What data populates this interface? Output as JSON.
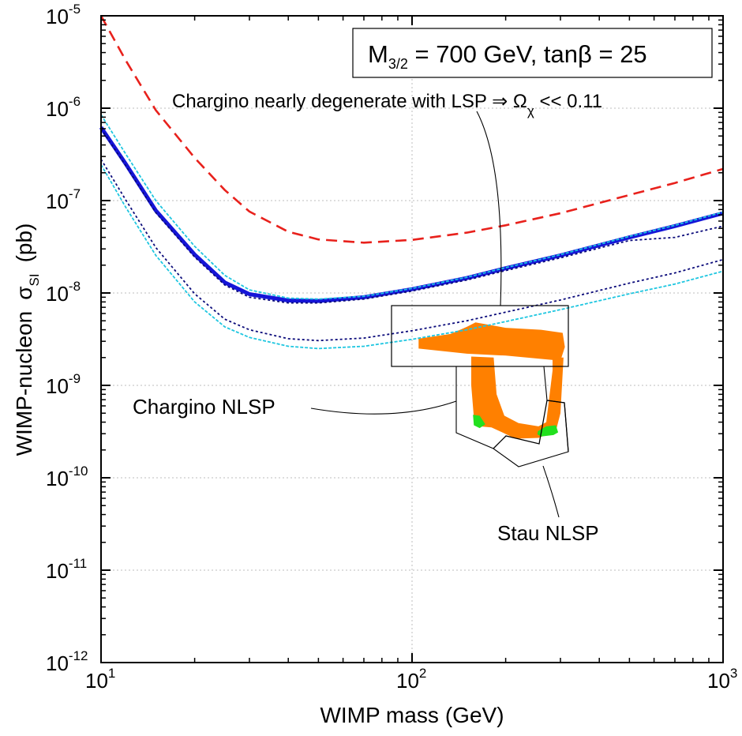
{
  "chart_data": {
    "type": "line",
    "x_scale": "log",
    "y_scale": "log",
    "xlim": [
      10,
      1000
    ],
    "ylim": [
      1e-12,
      1e-05
    ],
    "grid": true,
    "xlabel": "WIMP mass",
    "xlabel_unit": "(GeV)",
    "ylabel": "WIMP-nucleon",
    "ylabel_symbol": "σ",
    "ylabel_symbol_sub": "SI",
    "ylabel_unit": "(pb)",
    "x_ticks": [
      {
        "value": 10,
        "base": "10",
        "exp": "1"
      },
      {
        "value": 100,
        "base": "10",
        "exp": "2"
      },
      {
        "value": 1000,
        "base": "10",
        "exp": "3"
      }
    ],
    "y_ticks": [
      {
        "value": 1e-12,
        "base": "10",
        "exp": "-12"
      },
      {
        "value": 1e-11,
        "base": "10",
        "exp": "-11"
      },
      {
        "value": 1e-10,
        "base": "10",
        "exp": "-10"
      },
      {
        "value": 1e-09,
        "base": "10",
        "exp": "-9"
      },
      {
        "value": 1e-08,
        "base": "10",
        "exp": "-8"
      },
      {
        "value": 1e-07,
        "base": "10",
        "exp": "-7"
      },
      {
        "value": 1e-06,
        "base": "10",
        "exp": "-6"
      },
      {
        "value": 1e-05,
        "base": "10",
        "exp": "-5"
      }
    ],
    "params_box": {
      "m_sym": "M",
      "m_sub": "3/2",
      "text": " = 700 GeV, tanβ = 25"
    },
    "annotations": [
      {
        "text": "Chargino nearly degenerate with LSP ⇒ Ω",
        "sub": "χ",
        "tail": " << 0.11"
      },
      {
        "text": "Chargino NLSP"
      },
      {
        "text": "Stau NLSP"
      }
    ],
    "series": [
      {
        "style": "dashed",
        "color": "#e8211c",
        "width": 2.6,
        "points": [
          [
            10,
            1e-05
          ],
          [
            12,
            3.3e-06
          ],
          [
            15,
            9.5e-07
          ],
          [
            20,
            2.9e-07
          ],
          [
            25,
            1.3e-07
          ],
          [
            30,
            7.6e-08
          ],
          [
            40,
            4.6e-08
          ],
          [
            50,
            3.8e-08
          ],
          [
            70,
            3.5e-08
          ],
          [
            100,
            3.75e-08
          ],
          [
            150,
            4.5e-08
          ],
          [
            200,
            5.4e-08
          ],
          [
            300,
            7.3e-08
          ],
          [
            500,
            1.15e-07
          ],
          [
            700,
            1.55e-07
          ],
          [
            1000,
            2.2e-07
          ]
        ]
      },
      {
        "style": "solid",
        "color": "#1515d8",
        "width": 5,
        "points": [
          [
            10,
            6.2e-07
          ],
          [
            12,
            2.5e-07
          ],
          [
            15,
            7.8e-08
          ],
          [
            20,
            2.6e-08
          ],
          [
            25,
            1.3e-08
          ],
          [
            30,
            9.7e-09
          ],
          [
            40,
            8.3e-09
          ],
          [
            50,
            8.2e-09
          ],
          [
            70,
            9e-09
          ],
          [
            100,
            1.1e-08
          ],
          [
            150,
            1.45e-08
          ],
          [
            200,
            1.85e-08
          ],
          [
            300,
            2.55e-08
          ],
          [
            500,
            4e-08
          ],
          [
            700,
            5.3e-08
          ],
          [
            1000,
            7.3e-08
          ]
        ]
      },
      {
        "style": "dotted-thin",
        "color": "#1ec6e0",
        "width": 1.8,
        "points": [
          [
            10,
            8.5e-07
          ],
          [
            12,
            3.2e-07
          ],
          [
            15,
            1e-07
          ],
          [
            20,
            3.2e-08
          ],
          [
            25,
            1.55e-08
          ],
          [
            30,
            1.08e-08
          ],
          [
            40,
            8.8e-09
          ],
          [
            50,
            8.6e-09
          ],
          [
            70,
            9.2e-09
          ],
          [
            100,
            1.12e-08
          ],
          [
            150,
            1.48e-08
          ],
          [
            200,
            1.88e-08
          ],
          [
            300,
            2.6e-08
          ],
          [
            500,
            4.1e-08
          ],
          [
            700,
            5.4e-08
          ],
          [
            1000,
            7.5e-08
          ]
        ]
      },
      {
        "style": "dotted-thin",
        "color": "#1ec6e0",
        "width": 1.8,
        "points": [
          [
            10,
            2.45e-07
          ],
          [
            12,
            8.5e-08
          ],
          [
            15,
            2.55e-08
          ],
          [
            20,
            8e-09
          ],
          [
            25,
            4.3e-09
          ],
          [
            30,
            3.3e-09
          ],
          [
            40,
            2.65e-09
          ],
          [
            50,
            2.5e-09
          ],
          [
            70,
            2.65e-09
          ],
          [
            100,
            3.15e-09
          ],
          [
            150,
            4e-09
          ],
          [
            200,
            4.9e-09
          ],
          [
            300,
            6.6e-09
          ],
          [
            500,
            9.8e-09
          ],
          [
            700,
            1.25e-08
          ],
          [
            1000,
            1.72e-08
          ]
        ]
      },
      {
        "style": "dotted",
        "color": "#0a0a7a",
        "width": 1.8,
        "points": [
          [
            10,
            2.8e-07
          ],
          [
            12,
            1.02e-07
          ],
          [
            15,
            3.1e-08
          ],
          [
            20,
            9.8e-09
          ],
          [
            25,
            5.2e-09
          ],
          [
            30,
            4e-09
          ],
          [
            40,
            3.2e-09
          ],
          [
            50,
            3.05e-09
          ],
          [
            70,
            3.25e-09
          ],
          [
            100,
            3.9e-09
          ],
          [
            150,
            5e-09
          ],
          [
            200,
            6.2e-09
          ],
          [
            300,
            8.4e-09
          ],
          [
            500,
            1.28e-08
          ],
          [
            700,
            1.65e-08
          ],
          [
            1000,
            2.3e-08
          ]
        ]
      },
      {
        "style": "dotted",
        "color": "#0a0a7a",
        "width": 1.8,
        "points": [
          [
            10,
            6e-07
          ],
          [
            12,
            2.4e-07
          ],
          [
            15,
            7.4e-08
          ],
          [
            20,
            2.45e-08
          ],
          [
            25,
            1.22e-08
          ],
          [
            30,
            9e-09
          ],
          [
            40,
            7.8e-09
          ],
          [
            50,
            7.8e-09
          ],
          [
            70,
            8.6e-09
          ],
          [
            100,
            1.05e-08
          ],
          [
            150,
            1.38e-08
          ],
          [
            200,
            1.75e-08
          ],
          [
            300,
            2.4e-08
          ],
          [
            500,
            3.7e-08
          ],
          [
            700,
            4e-08
          ],
          [
            1000,
            5.3e-08
          ]
        ]
      }
    ],
    "regions": [
      {
        "label": "chargino-degenerate-band",
        "color": "#ff8000",
        "points": [
          [
            105,
            3.2e-09
          ],
          [
            133,
            3.6e-09
          ],
          [
            150,
            4.3e-09
          ],
          [
            160,
            4.8e-09
          ],
          [
            200,
            4.2e-09
          ],
          [
            260,
            4e-09
          ],
          [
            305,
            3.7e-09
          ],
          [
            310,
            2.6e-09
          ],
          [
            300,
            1.85e-09
          ],
          [
            200,
            2.1e-09
          ],
          [
            150,
            2.2e-09
          ],
          [
            105,
            2.5e-09
          ]
        ]
      },
      {
        "label": "nlsp-u-band",
        "color": "#ff8000",
        "points": [
          [
            155,
            2.05e-09
          ],
          [
            183,
            2e-09
          ],
          [
            187,
            8e-10
          ],
          [
            198,
            4.7e-10
          ],
          [
            220,
            3.9e-10
          ],
          [
            255,
            3.6e-10
          ],
          [
            270,
            4e-10
          ],
          [
            283,
            1.45e-09
          ],
          [
            283,
            2e-09
          ],
          [
            307,
            2e-09
          ],
          [
            300,
            5e-10
          ],
          [
            290,
            3.2e-10
          ],
          [
            255,
            2.7e-10
          ],
          [
            215,
            2.65e-10
          ],
          [
            195,
            3.1e-10
          ],
          [
            180,
            3.5e-10
          ],
          [
            165,
            3.6e-10
          ],
          [
            158,
            4.5e-10
          ],
          [
            155,
            1e-09
          ]
        ]
      },
      {
        "label": "green-left",
        "color": "#22e01e",
        "points": [
          [
            157,
            4.8e-10
          ],
          [
            165,
            4.7e-10
          ],
          [
            172,
            3.8e-10
          ],
          [
            165,
            3.45e-10
          ],
          [
            158,
            3.7e-10
          ]
        ]
      },
      {
        "label": "green-right",
        "color": "#22e01e",
        "points": [
          [
            254,
            3.2e-10
          ],
          [
            270,
            3.6e-10
          ],
          [
            290,
            3.7e-10
          ],
          [
            295,
            3.1e-10
          ],
          [
            285,
            2.9e-10
          ],
          [
            260,
            2.8e-10
          ],
          [
            253,
            2.95e-10
          ]
        ]
      }
    ]
  }
}
